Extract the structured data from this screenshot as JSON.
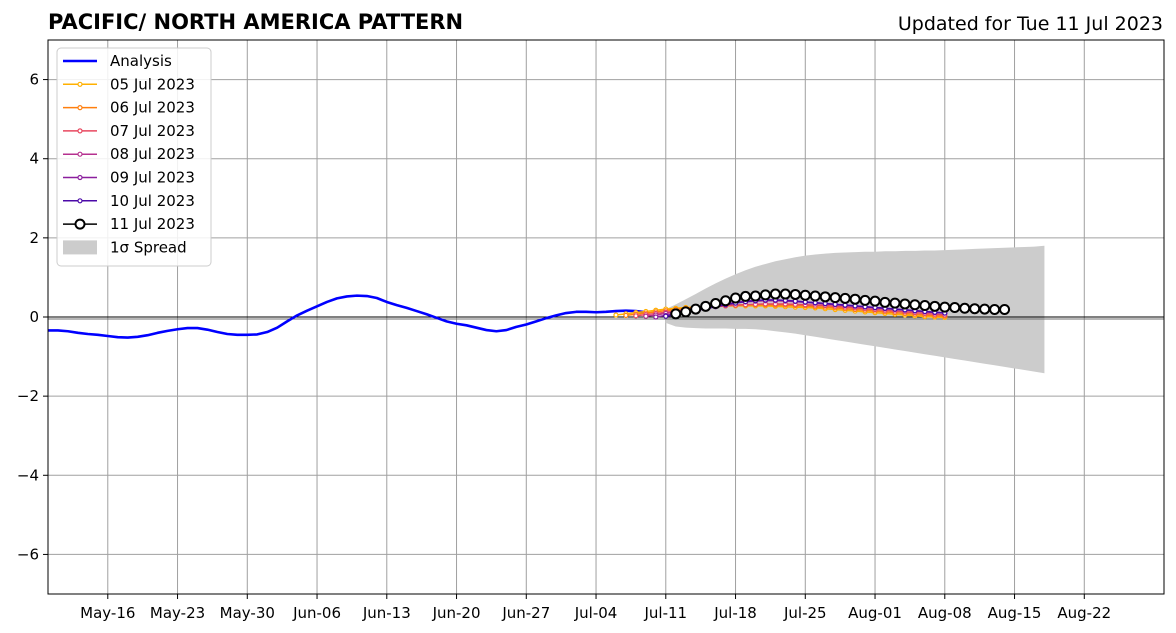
{
  "header": {
    "title": "PACIFIC/ NORTH AMERICA PATTERN",
    "updated": "Updated for Tue 11 Jul 2023"
  },
  "chart_data": {
    "type": "line",
    "title": "PACIFIC/ NORTH AMERICA PATTERN",
    "subtitle": "Updated for Tue 11 Jul 2023",
    "xlabel": "",
    "ylabel": "",
    "x_axis": {
      "type": "date",
      "start": "2023-05-10",
      "end": "2023-08-30",
      "ticks": [
        "2023-05-16",
        "2023-05-23",
        "2023-05-30",
        "2023-06-06",
        "2023-06-13",
        "2023-06-20",
        "2023-06-27",
        "2023-07-04",
        "2023-07-11",
        "2023-07-18",
        "2023-07-25",
        "2023-08-01",
        "2023-08-08",
        "2023-08-15",
        "2023-08-22"
      ],
      "tick_labels": [
        "May-16",
        "May-23",
        "May-30",
        "Jun-06",
        "Jun-13",
        "Jun-20",
        "Jun-27",
        "Jul-04",
        "Jul-11",
        "Jul-18",
        "Jul-25",
        "Aug-01",
        "Aug-08",
        "Aug-15",
        "Aug-22"
      ]
    },
    "ylim": [
      -7,
      7
    ],
    "y_ticks": [
      -6,
      -4,
      -2,
      0,
      2,
      4,
      6
    ],
    "y_tick_labels": [
      "−6",
      "−4",
      "−2",
      "0",
      "2",
      "4",
      "6"
    ],
    "grid": true,
    "zero_line": true,
    "legend": {
      "placement": "top-left"
    },
    "analysis": {
      "name": "Analysis",
      "color": "#0000ff",
      "start": "2023-05-10",
      "values": [
        -0.34,
        -0.34,
        -0.36,
        -0.4,
        -0.43,
        -0.45,
        -0.48,
        -0.51,
        -0.52,
        -0.5,
        -0.46,
        -0.4,
        -0.35,
        -0.31,
        -0.28,
        -0.28,
        -0.32,
        -0.38,
        -0.43,
        -0.45,
        -0.45,
        -0.44,
        -0.38,
        -0.27,
        -0.11,
        0.04,
        0.16,
        0.27,
        0.38,
        0.47,
        0.52,
        0.54,
        0.53,
        0.48,
        0.38,
        0.3,
        0.23,
        0.15,
        0.07,
        -0.02,
        -0.11,
        -0.17,
        -0.21,
        -0.27,
        -0.33,
        -0.36,
        -0.33,
        -0.25,
        -0.19,
        -0.11,
        -0.03,
        0.04,
        0.1,
        0.13,
        0.13,
        0.12,
        0.13,
        0.15,
        0.16,
        0.15,
        0.12
      ]
    },
    "forecasts": [
      {
        "name": "05 Jul 2023",
        "color": "#ffb000",
        "start": "2023-07-06",
        "values": [
          0.05,
          0.08,
          0.11,
          0.14,
          0.17,
          0.2,
          0.22,
          0.24,
          0.25,
          0.26,
          0.27,
          0.28,
          0.28,
          0.28,
          0.28,
          0.28,
          0.27,
          0.26,
          0.25,
          0.24,
          0.23,
          0.21,
          0.19,
          0.17,
          0.15,
          0.13,
          0.11,
          0.09,
          0.07,
          0.05,
          0.03,
          0.01,
          0.0,
          -0.01
        ]
      },
      {
        "name": "06 Jul 2023",
        "color": "#ff7f0e",
        "start": "2023-07-07",
        "values": [
          0.04,
          0.07,
          0.1,
          0.13,
          0.16,
          0.19,
          0.22,
          0.24,
          0.26,
          0.28,
          0.29,
          0.3,
          0.31,
          0.31,
          0.31,
          0.3,
          0.3,
          0.29,
          0.28,
          0.26,
          0.25,
          0.23,
          0.21,
          0.19,
          0.17,
          0.15,
          0.13,
          0.11,
          0.09,
          0.07,
          0.05,
          0.03,
          0.02
        ]
      },
      {
        "name": "07 Jul 2023",
        "color": "#e8475f",
        "start": "2023-07-08",
        "values": [
          0.03,
          0.06,
          0.09,
          0.12,
          0.15,
          0.18,
          0.21,
          0.24,
          0.26,
          0.28,
          0.3,
          0.31,
          0.32,
          0.33,
          0.33,
          0.33,
          0.32,
          0.31,
          0.3,
          0.29,
          0.27,
          0.25,
          0.23,
          0.21,
          0.19,
          0.17,
          0.15,
          0.13,
          0.11,
          0.09,
          0.07,
          0.05
        ]
      },
      {
        "name": "08 Jul 2023",
        "color": "#b5308f",
        "start": "2023-07-09",
        "values": [
          0.02,
          0.05,
          0.09,
          0.13,
          0.17,
          0.22,
          0.26,
          0.3,
          0.33,
          0.36,
          0.38,
          0.4,
          0.41,
          0.41,
          0.4,
          0.39,
          0.37,
          0.35,
          0.33,
          0.31,
          0.29,
          0.27,
          0.25,
          0.23,
          0.21,
          0.19,
          0.17,
          0.15,
          0.13,
          0.11,
          0.1
        ]
      },
      {
        "name": "09 Jul 2023",
        "color": "#8b1f9e",
        "start": "2023-07-10",
        "values": [
          0.0,
          0.04,
          0.09,
          0.14,
          0.19,
          0.24,
          0.29,
          0.33,
          0.37,
          0.4,
          0.42,
          0.43,
          0.43,
          0.42,
          0.4,
          0.38,
          0.36,
          0.34,
          0.32,
          0.3,
          0.28,
          0.26,
          0.24,
          0.22,
          0.2,
          0.18,
          0.16,
          0.14,
          0.12,
          0.1
        ]
      },
      {
        "name": "10 Jul 2023",
        "color": "#4b0aa8",
        "start": "2023-07-11",
        "values": [
          0.02,
          0.06,
          0.11,
          0.16,
          0.21,
          0.26,
          0.31,
          0.35,
          0.39,
          0.41,
          0.43,
          0.43,
          0.42,
          0.4,
          0.38,
          0.36,
          0.34,
          0.32,
          0.3,
          0.28,
          0.26,
          0.24,
          0.22,
          0.2,
          0.18,
          0.16,
          0.14,
          0.12,
          0.1
        ]
      }
    ],
    "latest": {
      "name": "11 Jul 2023",
      "color": "#000000",
      "start": "2023-07-12",
      "values": [
        0.08,
        0.13,
        0.2,
        0.27,
        0.34,
        0.41,
        0.48,
        0.52,
        0.53,
        0.56,
        0.58,
        0.58,
        0.57,
        0.55,
        0.53,
        0.51,
        0.49,
        0.47,
        0.45,
        0.42,
        0.4,
        0.37,
        0.35,
        0.33,
        0.31,
        0.29,
        0.27,
        0.25,
        0.24,
        0.22,
        0.21,
        0.2,
        0.19,
        0.19
      ]
    },
    "spread": {
      "name": "1σ Spread",
      "color": "#cccccc",
      "start": "2023-07-11",
      "upper": [
        0.2,
        0.32,
        0.45,
        0.58,
        0.72,
        0.85,
        0.97,
        1.08,
        1.18,
        1.27,
        1.34,
        1.41,
        1.46,
        1.51,
        1.55,
        1.58,
        1.6,
        1.62,
        1.63,
        1.64,
        1.65,
        1.65,
        1.66,
        1.66,
        1.67,
        1.67,
        1.68,
        1.68,
        1.69,
        1.7,
        1.71,
        1.72,
        1.73,
        1.74,
        1.75,
        1.76,
        1.77,
        1.78,
        1.8
      ],
      "lower": [
        -0.15,
        -0.24,
        -0.27,
        -0.28,
        -0.29,
        -0.29,
        -0.29,
        -0.3,
        -0.3,
        -0.31,
        -0.33,
        -0.36,
        -0.39,
        -0.42,
        -0.46,
        -0.5,
        -0.54,
        -0.58,
        -0.62,
        -0.66,
        -0.7,
        -0.74,
        -0.78,
        -0.82,
        -0.86,
        -0.9,
        -0.94,
        -0.98,
        -1.02,
        -1.06,
        -1.1,
        -1.14,
        -1.18,
        -1.22,
        -1.26,
        -1.3,
        -1.34,
        -1.38,
        -1.42
      ]
    }
  }
}
